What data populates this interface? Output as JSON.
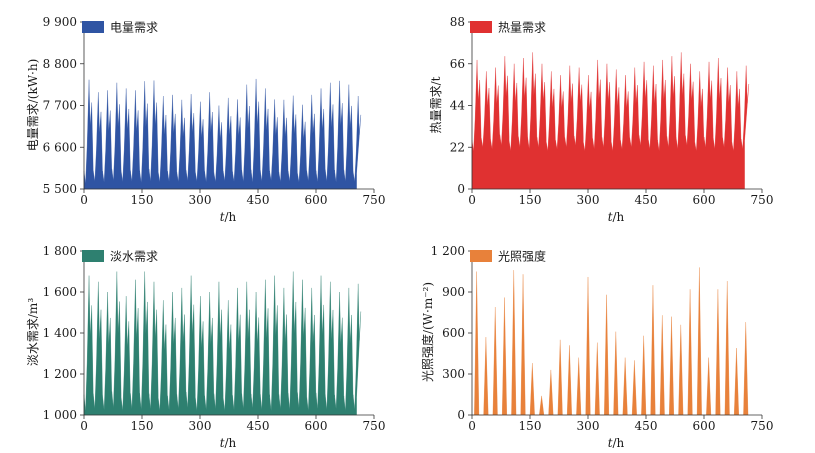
{
  "chart_data": [
    {
      "type": "area",
      "id": "electricity",
      "legend": "电量需求",
      "color": "#2f54a3",
      "xlabel_italic": "t",
      "xlabel_unit": "/h",
      "ylabel": "电量需求/(kW·h)",
      "xlim": [
        0,
        750
      ],
      "ylim": [
        5500,
        9900
      ],
      "xticks": [
        0,
        150,
        300,
        450,
        600,
        750
      ],
      "xtick_labels": [
        "0",
        "150",
        "300",
        "450",
        "600",
        "750"
      ],
      "yticks": [
        5500,
        6600,
        7700,
        8800,
        9900
      ],
      "ytick_labels": [
        "5 500",
        "6 600",
        "7 700",
        "8 800",
        "9 900"
      ],
      "data_x_max": 705,
      "period_hours": 24,
      "daily_min": [
        5650,
        5700,
        5680,
        5720,
        5690,
        5700,
        5660,
        5710,
        5680,
        5700,
        5690,
        5720,
        5700,
        5680,
        5690,
        5710,
        5700,
        5690,
        5680,
        5700,
        5720,
        5690,
        5700,
        5680,
        5710,
        5690,
        5700,
        5680,
        5700,
        5690
      ],
      "daily_peak": [
        8380,
        8050,
        8100,
        8300,
        8150,
        8100,
        8340,
        8360,
        7950,
        7980,
        7850,
        8000,
        7800,
        8050,
        7700,
        7900,
        7860,
        8250,
        8400,
        8150,
        7860,
        7850,
        7960,
        7720,
        7980,
        8150,
        8300,
        8350,
        8250,
        7950
      ]
    },
    {
      "type": "area",
      "id": "heat",
      "legend": "热量需求",
      "color": "#e03131",
      "xlabel_italic": "t",
      "xlabel_unit": "/h",
      "ylabel": "热量需求/t",
      "xlim": [
        0,
        750
      ],
      "ylim": [
        0,
        88
      ],
      "xticks": [
        0,
        150,
        300,
        450,
        600,
        750
      ],
      "xtick_labels": [
        "0",
        "150",
        "300",
        "450",
        "600",
        "750"
      ],
      "yticks": [
        0,
        22,
        44,
        66,
        88
      ],
      "ytick_labels": [
        "0",
        "22",
        "44",
        "66",
        "88"
      ],
      "data_x_max": 705,
      "period_hours": 24,
      "daily_min": [
        20,
        22,
        21,
        23,
        20,
        22,
        21,
        22,
        20,
        21,
        22,
        23,
        20,
        21,
        22,
        20,
        21,
        22,
        23,
        21,
        20,
        22,
        21,
        23,
        20,
        22,
        21,
        22,
        20,
        21
      ],
      "daily_peak": [
        68,
        62,
        64,
        70,
        66,
        69,
        72,
        66,
        62,
        60,
        65,
        64,
        60,
        68,
        66,
        63,
        60,
        64,
        67,
        65,
        68,
        70,
        72,
        66,
        62,
        67,
        69,
        64,
        62,
        65
      ]
    },
    {
      "type": "area",
      "id": "freshwater",
      "legend": "淡水需求",
      "color": "#2e8070",
      "xlabel_italic": "t",
      "xlabel_unit": "/h",
      "ylabel": "淡水需求/m³",
      "xlim": [
        0,
        750
      ],
      "ylim": [
        1000,
        1800
      ],
      "xticks": [
        0,
        150,
        300,
        450,
        600,
        750
      ],
      "xtick_labels": [
        "0",
        "150",
        "300",
        "450",
        "600",
        "750"
      ],
      "yticks": [
        1000,
        1200,
        1400,
        1600,
        1800
      ],
      "ytick_labels": [
        "1 000",
        "1 200",
        "1 400",
        "1 600",
        "1 800"
      ],
      "data_x_max": 705,
      "period_hours": 24,
      "daily_min": [
        1020,
        1030,
        1025,
        1035,
        1020,
        1030,
        1025,
        1030,
        1020,
        1025,
        1030,
        1035,
        1020,
        1025,
        1030,
        1020,
        1025,
        1030,
        1035,
        1025,
        1020,
        1030,
        1025,
        1035,
        1020,
        1030,
        1025,
        1030,
        1020,
        1025
      ],
      "daily_peak": [
        1680,
        1650,
        1600,
        1700,
        1580,
        1660,
        1700,
        1650,
        1560,
        1600,
        1620,
        1680,
        1580,
        1600,
        1650,
        1560,
        1620,
        1650,
        1600,
        1660,
        1680,
        1620,
        1700,
        1660,
        1620,
        1680,
        1650,
        1600,
        1620,
        1640
      ]
    },
    {
      "type": "area",
      "id": "irradiance",
      "legend": "光照强度",
      "color": "#e8813a",
      "xlabel_italic": "t",
      "xlabel_unit": "/h",
      "ylabel": "光照强度/(W·m⁻²)",
      "xlim": [
        0,
        750
      ],
      "ylim": [
        0,
        1200
      ],
      "xticks": [
        0,
        150,
        300,
        450,
        600,
        750
      ],
      "xtick_labels": [
        "0",
        "150",
        "300",
        "450",
        "600",
        "750"
      ],
      "yticks": [
        0,
        300,
        600,
        900,
        1200
      ],
      "ytick_labels": [
        "0",
        "300",
        "600",
        "900",
        "1 200"
      ],
      "data_x_max": 705,
      "period_hours": 24,
      "daily_min": [
        0,
        0,
        0,
        0,
        0,
        0,
        0,
        0,
        0,
        0,
        0,
        0,
        0,
        0,
        0,
        0,
        0,
        0,
        0,
        0,
        0,
        0,
        0,
        0,
        0,
        0,
        0,
        0,
        0,
        0
      ],
      "daily_peak": [
        1050,
        570,
        790,
        860,
        1060,
        1030,
        380,
        140,
        330,
        550,
        510,
        420,
        1010,
        530,
        880,
        610,
        420,
        400,
        580,
        950,
        730,
        720,
        660,
        920,
        1080,
        420,
        920,
        980,
        490,
        680
      ]
    }
  ]
}
